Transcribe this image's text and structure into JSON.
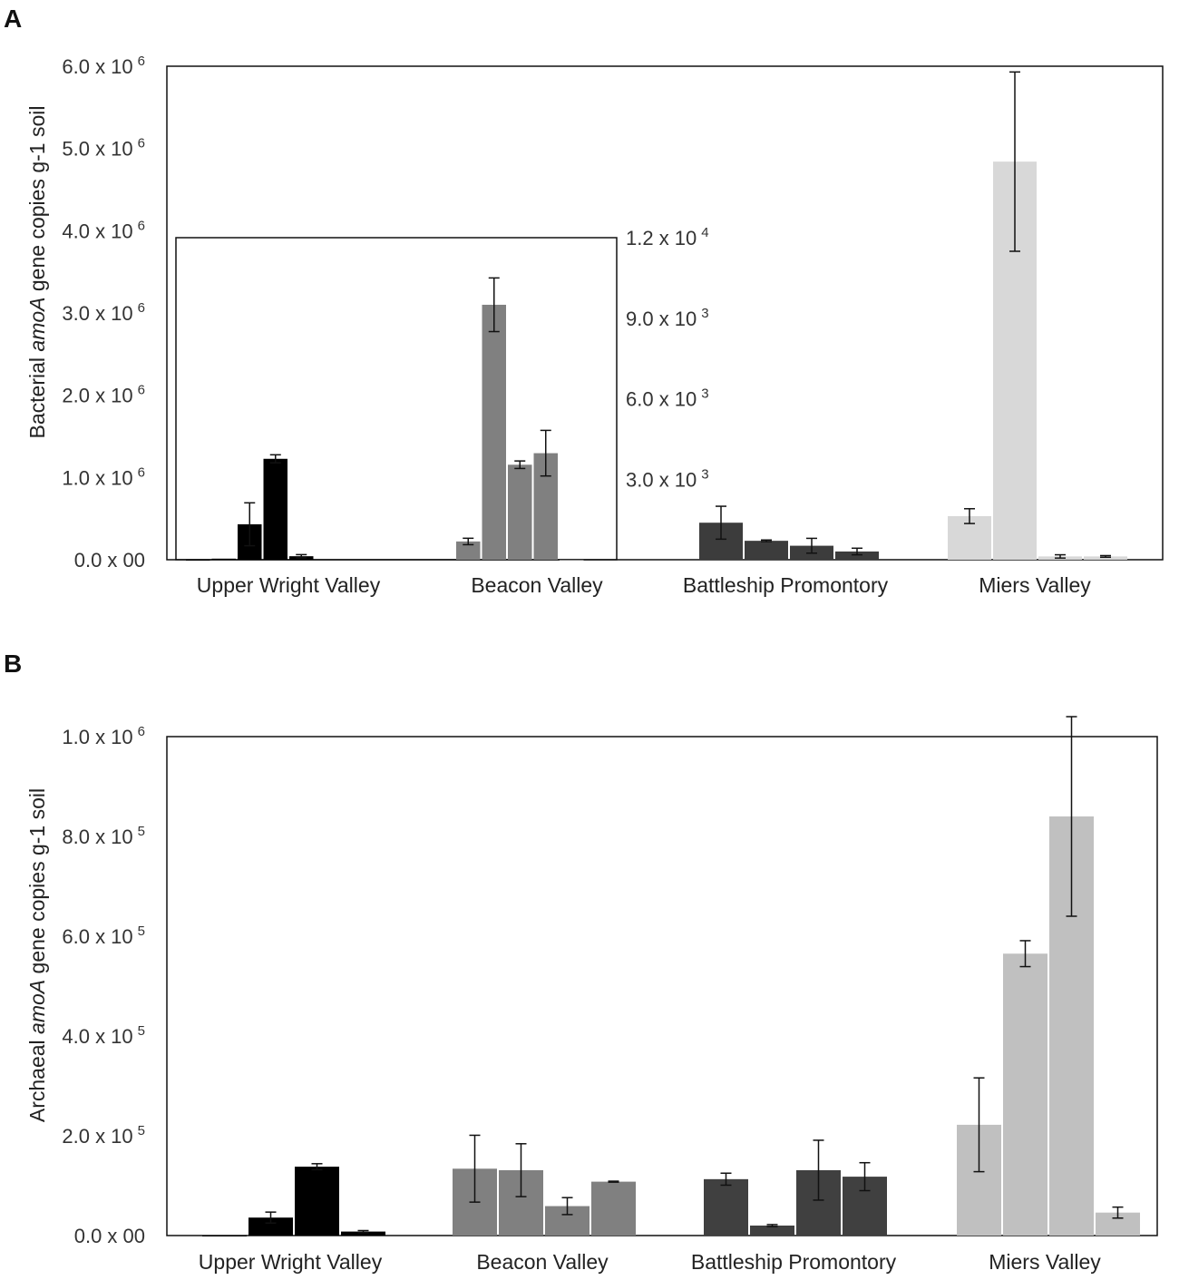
{
  "chart_data": [
    {
      "panel": "A",
      "type": "bar",
      "ylabel_pre": "Bacterial ",
      "ylabel_it": "amoA",
      "ylabel_post": " gene copies g-1 soil",
      "categories": [
        "Upper Wright Valley",
        "Beacon Valley",
        "Battleship Promontory",
        "Miers Valley"
      ],
      "ylim": [
        0,
        6000000
      ],
      "y_ticks": [
        {
          "v": 0,
          "base": "0.0 x 00",
          "exp": ""
        },
        {
          "v": 1000000,
          "base": "1.0 x 10",
          "exp": "6"
        },
        {
          "v": 2000000,
          "base": "2.0 x 10",
          "exp": "6"
        },
        {
          "v": 3000000,
          "base": "3.0 x 10",
          "exp": "6"
        },
        {
          "v": 4000000,
          "base": "4.0 x 10",
          "exp": "6"
        },
        {
          "v": 5000000,
          "base": "5.0 x 10",
          "exp": "6"
        },
        {
          "v": 6000000,
          "base": "6.0 x 10",
          "exp": "6"
        }
      ],
      "inset": {
        "ylim": [
          0,
          12000
        ],
        "y_ticks": [
          {
            "v": 3000,
            "base": "3.0 x 10",
            "exp": "3"
          },
          {
            "v": 6000,
            "base": "6.0 x 10",
            "exp": "3"
          },
          {
            "v": 9000,
            "base": "9.0 x 10",
            "exp": "3"
          },
          {
            "v": 12000,
            "base": "1.2 x 10",
            "exp": "4"
          }
        ],
        "groups": [
          {
            "name": "Upper Wright Valley",
            "color": "#000000",
            "values": [
              0,
              40,
              1320,
              3760,
              130
            ],
            "errors": [
              0,
              0,
              800,
              150,
              60
            ]
          },
          {
            "name": "Beacon Valley",
            "color": "#808080",
            "values": [
              680,
              9500,
              3540,
              3970,
              0
            ],
            "errors": [
              120,
              1000,
              140,
              850,
              0
            ]
          }
        ]
      },
      "groups": [
        {
          "name": "Battleship Promontory",
          "color": "#3c3c3c",
          "values": [
            450000,
            230000,
            170000,
            100000
          ],
          "errors": [
            200000,
            10000,
            90000,
            40000
          ]
        },
        {
          "name": "Miers Valley",
          "color": "#d8d8d8",
          "values": [
            530000,
            4840000,
            40000,
            40000
          ],
          "errors": [
            90000,
            1090000,
            20000,
            10000
          ]
        }
      ]
    },
    {
      "panel": "B",
      "type": "bar",
      "ylabel_pre": "Archaeal ",
      "ylabel_it": "amoA",
      "ylabel_post": " gene copies g-1 soil",
      "categories": [
        "Upper Wright Valley",
        "Beacon Valley",
        "Battleship Promontory",
        "Miers Valley"
      ],
      "ylim": [
        0,
        1000000
      ],
      "y_ticks": [
        {
          "v": 0,
          "base": "0.0 x 00",
          "exp": ""
        },
        {
          "v": 200000,
          "base": "2.0 x 10",
          "exp": "5"
        },
        {
          "v": 400000,
          "base": "4.0 x 10",
          "exp": "5"
        },
        {
          "v": 600000,
          "base": "6.0 x 10",
          "exp": "5"
        },
        {
          "v": 800000,
          "base": "8.0 x 10",
          "exp": "5"
        },
        {
          "v": 1000000,
          "base": "1.0 x 10",
          "exp": "6"
        }
      ],
      "groups": [
        {
          "name": "Upper Wright Valley",
          "color": "#000000",
          "values": [
            0,
            36000,
            138000,
            8000
          ],
          "errors": [
            0,
            11000,
            6000,
            2000
          ]
        },
        {
          "name": "Beacon Valley",
          "color": "#808080",
          "values": [
            134000,
            131000,
            59000,
            108000
          ],
          "errors": [
            67000,
            53000,
            17000,
            1000
          ]
        },
        {
          "name": "Battleship Promontory",
          "color": "#404040",
          "values": [
            113000,
            20000,
            131000,
            118000
          ],
          "errors": [
            12000,
            2000,
            60000,
            28000
          ]
        },
        {
          "name": "Miers Valley",
          "color": "#c0c0c0",
          "values": [
            222000,
            565000,
            840000,
            46000
          ],
          "errors": [
            94000,
            26000,
            200000,
            11000
          ]
        }
      ]
    }
  ],
  "panels": {
    "a": "A",
    "b": "B"
  }
}
